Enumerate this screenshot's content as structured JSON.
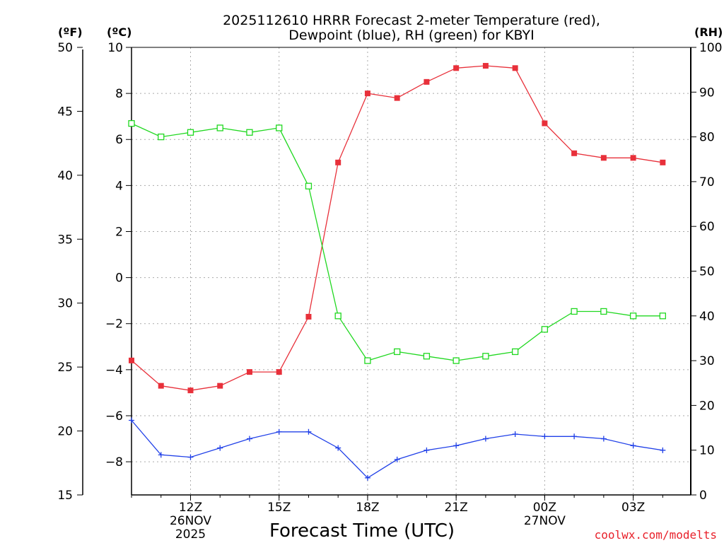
{
  "chart_data": {
    "type": "line",
    "title_line1": "2025112610 HRRR Forecast 2-meter Temperature (red),",
    "title_line2": "Dewpoint (blue), RH (green) for KBYI",
    "xlabel": "Forecast Time (UTC)",
    "credit": "coolwx.com/modelts",
    "axes": {
      "fahrenheit": {
        "label": "(ºF)",
        "range": [
          15,
          50
        ],
        "ticks": [
          "15",
          "20",
          "25",
          "30",
          "35",
          "40",
          "45",
          "50"
        ]
      },
      "celsius": {
        "label": "(ºC)",
        "range": [
          -9.44,
          10
        ],
        "ticks": [
          "−8",
          "−6",
          "−4",
          "−2",
          "0",
          "2",
          "4",
          "6",
          "8",
          "10"
        ]
      },
      "rh": {
        "label": "(RH)",
        "range": [
          0,
          100
        ],
        "ticks": [
          "0",
          "10",
          "20",
          "30",
          "40",
          "50",
          "60",
          "70",
          "80",
          "90",
          "100"
        ]
      }
    },
    "x_hours": [
      10,
      11,
      12,
      13,
      14,
      15,
      16,
      17,
      18,
      19,
      20,
      21,
      22,
      23,
      24,
      25,
      26,
      27,
      28
    ],
    "x_ticks": [
      {
        "hour": 12,
        "label": "12Z",
        "sub1": "26NOV",
        "sub2": "2025"
      },
      {
        "hour": 15,
        "label": "15Z",
        "sub1": "",
        "sub2": ""
      },
      {
        "hour": 18,
        "label": "18Z",
        "sub1": "",
        "sub2": ""
      },
      {
        "hour": 21,
        "label": "21Z",
        "sub1": "",
        "sub2": ""
      },
      {
        "hour": 24,
        "label": "00Z",
        "sub1": "27NOV",
        "sub2": ""
      },
      {
        "hour": 27,
        "label": "03Z",
        "sub1": "",
        "sub2": ""
      }
    ],
    "series": [
      {
        "name": "Temperature",
        "axis": "celsius",
        "color": "#e8303a",
        "marker": "filled-square",
        "values": [
          -3.6,
          -4.7,
          -4.9,
          -4.7,
          -4.1,
          -4.1,
          -1.7,
          5.0,
          8.0,
          7.8,
          8.5,
          9.1,
          9.2,
          9.1,
          6.7,
          5.4,
          5.2,
          5.2,
          5.0
        ]
      },
      {
        "name": "Dewpoint",
        "axis": "celsius",
        "color": "#2040e8",
        "marker": "plus",
        "values": [
          -6.2,
          -7.7,
          -7.8,
          -7.4,
          -7.0,
          -6.7,
          -6.7,
          -7.4,
          -8.7,
          -7.9,
          -7.5,
          -7.3,
          -7.0,
          -6.8,
          -6.9,
          -6.9,
          -7.0,
          -7.3,
          -7.5
        ]
      },
      {
        "name": "RH",
        "axis": "rh",
        "color": "#20d820",
        "marker": "open-square",
        "values": [
          83,
          80,
          81,
          82,
          81,
          82,
          69,
          40,
          30,
          32,
          31,
          30,
          31,
          32,
          37,
          41,
          41,
          40,
          40
        ]
      }
    ]
  }
}
